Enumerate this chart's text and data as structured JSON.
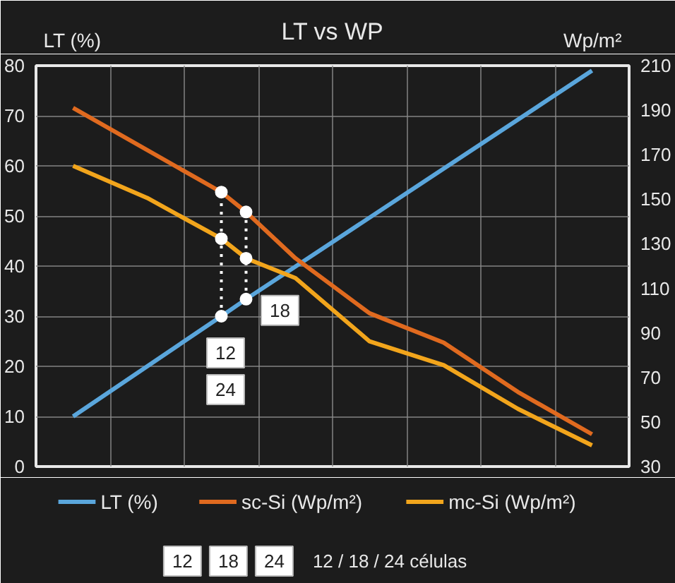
{
  "chart_data": {
    "type": "line",
    "title": "LT vs WP",
    "ylabel": "LT (%)",
    "y2label": "Wp/m²",
    "categories": [
      null,
      null,
      null,
      null,
      null,
      null,
      null,
      null,
      null,
      null,
      null,
      null,
      null,
      null,
      null,
      null,
      null,
      null,
      null,
      null,
      null,
      null,
      null,
      null
    ],
    "ylim": [
      0,
      80
    ],
    "yticks": [
      0,
      10,
      20,
      30,
      40,
      50,
      60,
      70,
      80
    ],
    "y2lim": [
      30,
      210
    ],
    "y2ticks": [
      30,
      50,
      70,
      90,
      110,
      130,
      150,
      170,
      190,
      210
    ],
    "grid": true,
    "legend": "bottom",
    "series": [
      {
        "name": "LT (%)",
        "color": "#5aa6dc",
        "values": [
          null,
          10,
          null,
          null,
          null,
          null,
          null,
          30,
          33.4,
          null,
          null,
          null,
          null,
          null,
          null,
          null,
          null,
          null,
          null,
          null,
          null,
          null,
          79,
          null
        ]
      },
      {
        "name": "sc-Si (Wp/m²)",
        "color": "#e06a1f",
        "axis": "y2",
        "values": [
          null,
          191,
          null,
          null,
          null,
          null,
          null,
          153.2,
          144.3,
          null,
          123.5,
          null,
          null,
          98.8,
          null,
          null,
          85.6,
          null,
          null,
          63.5,
          null,
          null,
          44.5,
          null
        ]
      },
      {
        "name": "mc-Si (Wp/m²)",
        "color": "#f2a51c",
        "axis": "y2",
        "values": [
          null,
          165,
          null,
          null,
          150.6,
          null,
          null,
          132.3,
          123.5,
          null,
          114.6,
          null,
          null,
          86.2,
          null,
          null,
          75.5,
          null,
          null,
          55.9,
          null,
          null,
          39.5,
          null
        ]
      },
      {
        "type": "scatter",
        "marker": "circle",
        "color": "#ffffff",
        "values": [
          null,
          null,
          null,
          null,
          null,
          null,
          null,
          30,
          33.4,
          null,
          null,
          null,
          null,
          null,
          null,
          null,
          null,
          null,
          null,
          null,
          null,
          null,
          null,
          null
        ]
      },
      {
        "type": "scatter",
        "marker": "circle",
        "color": "#ffffff",
        "axis": "y2",
        "values": [
          null,
          null,
          null,
          null,
          null,
          null,
          null,
          153.2,
          144.3,
          null,
          null,
          null,
          null,
          null,
          null,
          null,
          null,
          null,
          null,
          null,
          null,
          null,
          null,
          null
        ]
      },
      {
        "type": "scatter",
        "marker": "circle",
        "color": "#ffffff",
        "axis": "y2",
        "values": [
          null,
          null,
          null,
          null,
          null,
          null,
          null,
          132.3,
          123.5,
          null,
          null,
          null,
          null,
          null,
          null,
          null,
          null,
          null,
          null,
          null,
          null,
          null,
          null,
          null
        ]
      }
    ],
    "annotations": [
      "12",
      "24",
      "18",
      "12",
      "18",
      "24",
      "12 / 18 / 24  células"
    ]
  }
}
